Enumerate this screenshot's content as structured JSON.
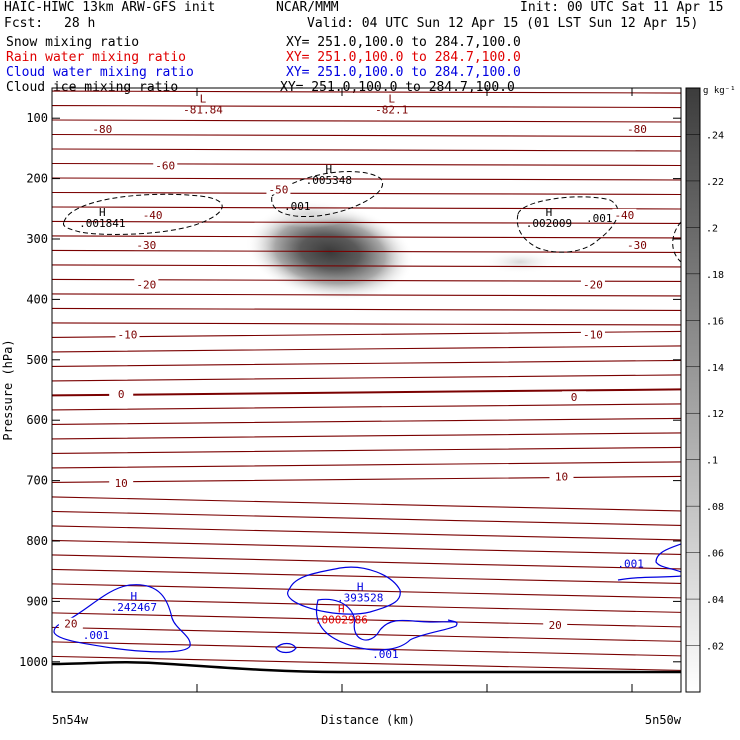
{
  "header": {
    "model": "HAIC-HIWC 13km ARW-GFS init",
    "center": "NCAR/MMM",
    "init": "Init: 00 UTC Sat 11 Apr 15",
    "fcst_label": "Fcst:",
    "fcst_value": "28 h",
    "valid": "Valid: 04 UTC Sun 12 Apr 15 (01 LST Sun 12 Apr 15)"
  },
  "fields": [
    {
      "name": "Snow mixing ratio",
      "xy": "XY= 251.0,100.0 to 284.7,100.0",
      "color": "#000000"
    },
    {
      "name": "Rain water mixing ratio",
      "xy": "XY= 251.0,100.0 to 284.7,100.0",
      "color": "#e00000"
    },
    {
      "name": "Cloud water mixing ratio",
      "xy": "XY= 251.0,100.0 to 284.7,100.0",
      "color": "#0000e0"
    },
    {
      "name": "Cloud ice mixing ratio",
      "xy": "XY= 251.0,100.0 to 284.7,100.0",
      "color": "#000000"
    }
  ],
  "chart_data": {
    "type": "contour",
    "xlabel": "Distance (km)",
    "ylabel": "Pressure (hPa)",
    "x_left_label": "5n54w",
    "x_right_label": "5n50w",
    "ylim": [
      1050,
      50
    ],
    "yticks": [
      100,
      200,
      300,
      400,
      500,
      600,
      700,
      800,
      900,
      1000
    ],
    "colorbar": {
      "unit": "g kg⁻¹",
      "levels": [
        ".02",
        ".04",
        ".06",
        ".08",
        ".1",
        ".12",
        ".14",
        ".16",
        ".18",
        ".2",
        ".22",
        ".24"
      ],
      "max_color": "#3c3c3c",
      "min_color": "#ffffff"
    },
    "temperature_labels": [
      {
        "text": "-80",
        "x": 0.08,
        "p": 118
      },
      {
        "text": "-80",
        "x": 0.93,
        "p": 118
      },
      {
        "text": "-60",
        "x": 0.18,
        "p": 178
      },
      {
        "text": "-50",
        "x": 0.36,
        "p": 218
      },
      {
        "text": "-40",
        "x": 0.16,
        "p": 260
      },
      {
        "text": "-40",
        "x": 0.91,
        "p": 260
      },
      {
        "text": "-30",
        "x": 0.15,
        "p": 310
      },
      {
        "text": "-30",
        "x": 0.93,
        "p": 310
      },
      {
        "text": "-20",
        "x": 0.15,
        "p": 375
      },
      {
        "text": "-20",
        "x": 0.86,
        "p": 375
      },
      {
        "text": "-10",
        "x": 0.12,
        "p": 458
      },
      {
        "text": "-10",
        "x": 0.86,
        "p": 458
      },
      {
        "text": "0",
        "x": 0.11,
        "p": 557
      },
      {
        "text": "0",
        "x": 0.83,
        "p": 562
      },
      {
        "text": "10",
        "x": 0.11,
        "p": 704
      },
      {
        "text": "10",
        "x": 0.81,
        "p": 693
      },
      {
        "text": "20",
        "x": 0.03,
        "p": 937
      },
      {
        "text": "20",
        "x": 0.8,
        "p": 939
      }
    ],
    "extrema": [
      {
        "sym": "L",
        "value": "-81.84",
        "x": 0.24,
        "p": 74,
        "color": "#7a0000"
      },
      {
        "sym": "L",
        "value": "-82.1",
        "x": 0.54,
        "p": 74,
        "color": "#7a0000"
      },
      {
        "sym": "H",
        "value": ".001841",
        "x": 0.08,
        "p": 262,
        "color": "#000000"
      },
      {
        "sym": "H",
        "value": ".005348",
        "x": 0.44,
        "p": 191,
        "color": "#000000"
      },
      {
        "sym": "H",
        "value": ".002009",
        "x": 0.79,
        "p": 262,
        "color": "#000000"
      },
      {
        "sym": "H",
        "value": ".242467",
        "x": 0.13,
        "p": 898,
        "color": "#0000e0"
      },
      {
        "sym": "H",
        "value": ".393528",
        "x": 0.49,
        "p": 882,
        "color": "#0000e0"
      },
      {
        "sym": "H",
        "value": ".0002986",
        "x": 0.46,
        "p": 918,
        "color": "#e00000"
      }
    ],
    "contour_labels": [
      {
        "text": ".001",
        "x": 0.39,
        "p": 245,
        "color": "#000000"
      },
      {
        "text": ".001",
        "x": 0.87,
        "p": 265,
        "color": "#000000"
      },
      {
        "text": ".001",
        "x": 0.07,
        "p": 956,
        "color": "#0000e0"
      },
      {
        "text": ".001",
        "x": 0.53,
        "p": 987,
        "color": "#0000e0"
      },
      {
        "text": ".001",
        "x": 0.92,
        "p": 837,
        "color": "#0000e0"
      }
    ]
  }
}
